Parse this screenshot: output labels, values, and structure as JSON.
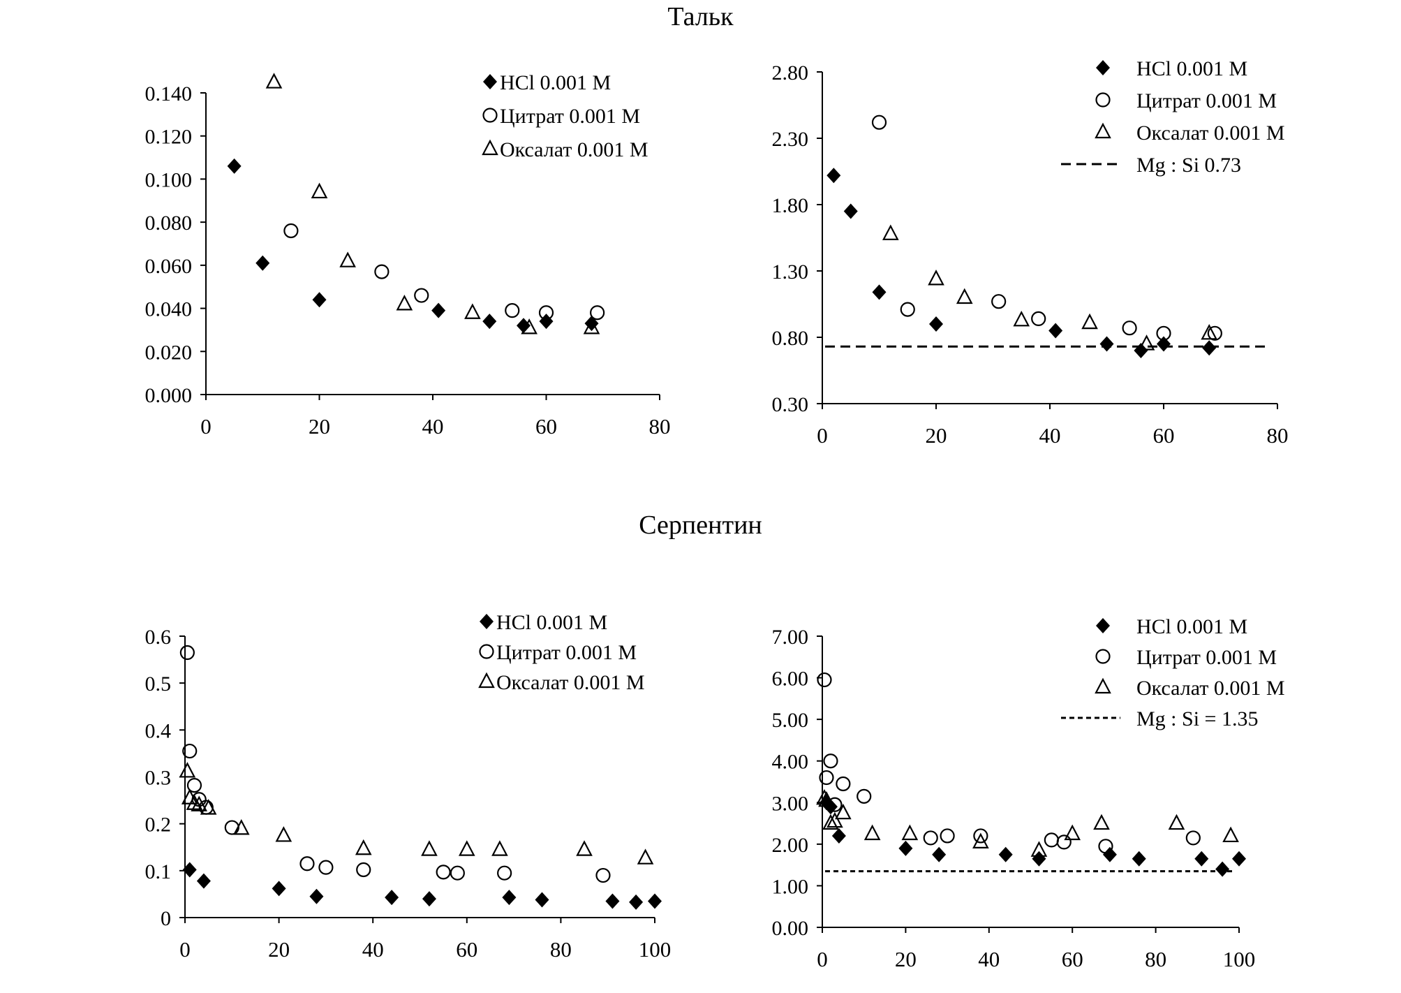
{
  "titles": {
    "talc": "Тальк",
    "serpentine": "Серпентин"
  },
  "chart_data": [
    {
      "type": "scatter",
      "title": "",
      "xlabel": "",
      "ylabel": "",
      "xlim": [
        0,
        80
      ],
      "ylim": [
        0,
        0.14
      ],
      "xticks": [
        "0",
        "20",
        "40",
        "60",
        "80"
      ],
      "yticks": [
        "0.000",
        "0.020",
        "0.040",
        "0.060",
        "0.080",
        "0.100",
        "0.120",
        "0.140"
      ],
      "legend": {
        "position": "top-right",
        "style": "inline"
      },
      "series": [
        {
          "name": "HCl 0.001 M",
          "marker": "diamond-filled",
          "points": [
            [
              5,
              0.106
            ],
            [
              10,
              0.061
            ],
            [
              20,
              0.044
            ],
            [
              41,
              0.039
            ],
            [
              50,
              0.034
            ],
            [
              56,
              0.032
            ],
            [
              60,
              0.034
            ],
            [
              68,
              0.033
            ]
          ]
        },
        {
          "name": "Цитрат 0.001 M",
          "marker": "circle-open",
          "points": [
            [
              15,
              0.076
            ],
            [
              31,
              0.057
            ],
            [
              38,
              0.046
            ],
            [
              54,
              0.039
            ],
            [
              60,
              0.038
            ],
            [
              69,
              0.038
            ]
          ]
        },
        {
          "name": "Оксалат 0.001 M",
          "marker": "triangle-open",
          "points": [
            [
              12,
              0.145
            ],
            [
              20,
              0.094
            ],
            [
              25,
              0.062
            ],
            [
              35,
              0.042
            ],
            [
              47,
              0.038
            ],
            [
              57,
              0.031
            ],
            [
              68,
              0.031
            ]
          ]
        }
      ]
    },
    {
      "type": "scatter",
      "title": "",
      "xlabel": "",
      "ylabel": "",
      "xlim": [
        0,
        80
      ],
      "ylim": [
        0.3,
        2.8
      ],
      "xticks": [
        "0",
        "20",
        "40",
        "60",
        "80"
      ],
      "yticks": [
        "0.30",
        "0.80",
        "1.30",
        "1.80",
        "2.30",
        "2.80"
      ],
      "legend": {
        "position": "top-right",
        "style": "column"
      },
      "series": [
        {
          "name": "HCl 0.001 M",
          "marker": "diamond-filled",
          "points": [
            [
              2,
              2.02
            ],
            [
              5,
              1.75
            ],
            [
              10,
              1.14
            ],
            [
              20,
              0.9
            ],
            [
              41,
              0.85
            ],
            [
              50,
              0.75
            ],
            [
              56,
              0.7
            ],
            [
              60,
              0.75
            ],
            [
              68,
              0.72
            ]
          ]
        },
        {
          "name": "Цитрат 0.001 M",
          "marker": "circle-open",
          "points": [
            [
              10,
              2.42
            ],
            [
              15,
              1.01
            ],
            [
              31,
              1.07
            ],
            [
              38,
              0.94
            ],
            [
              54,
              0.87
            ],
            [
              60,
              0.83
            ],
            [
              69,
              0.83
            ]
          ]
        },
        {
          "name": "Оксалат 0.001 M",
          "marker": "triangle-open",
          "points": [
            [
              12,
              1.58
            ],
            [
              20,
              1.24
            ],
            [
              25,
              1.1
            ],
            [
              35,
              0.93
            ],
            [
              47,
              0.91
            ],
            [
              57,
              0.75
            ],
            [
              68,
              0.83
            ]
          ]
        },
        {
          "name": "Mg : Si  0.73",
          "marker": "line-dashed",
          "value": 0.73
        }
      ]
    },
    {
      "type": "scatter",
      "title": "",
      "xlabel": "",
      "ylabel": "",
      "xlim": [
        0,
        100
      ],
      "ylim": [
        0,
        0.6
      ],
      "xticks": [
        "0",
        "20",
        "40",
        "60",
        "80",
        "100"
      ],
      "yticks": [
        "0",
        "0.1",
        "0.2",
        "0.3",
        "0.4",
        "0.5",
        "0.6"
      ],
      "legend": {
        "position": "top-right",
        "style": "inline"
      },
      "series": [
        {
          "name": "HCl 0.001 M",
          "marker": "diamond-filled",
          "points": [
            [
              1,
              0.102
            ],
            [
              4,
              0.078
            ],
            [
              20,
              0.062
            ],
            [
              28,
              0.045
            ],
            [
              44,
              0.043
            ],
            [
              52,
              0.04
            ],
            [
              69,
              0.043
            ],
            [
              76,
              0.038
            ],
            [
              91,
              0.035
            ],
            [
              96,
              0.033
            ],
            [
              100,
              0.035
            ]
          ]
        },
        {
          "name": "Цитрат 0.001 M",
          "marker": "circle-open",
          "points": [
            [
              0.5,
              0.565
            ],
            [
              1,
              0.355
            ],
            [
              2,
              0.282
            ],
            [
              3,
              0.252
            ],
            [
              4.5,
              0.235
            ],
            [
              10,
              0.192
            ],
            [
              26,
              0.115
            ],
            [
              30,
              0.107
            ],
            [
              38,
              0.102
            ],
            [
              55,
              0.097
            ],
            [
              58,
              0.095
            ],
            [
              68,
              0.095
            ],
            [
              89,
              0.09
            ]
          ]
        },
        {
          "name": "Оксалат 0.001 M",
          "marker": "triangle-open",
          "points": [
            [
              0.5,
              0.312
            ],
            [
              1,
              0.255
            ],
            [
              2,
              0.243
            ],
            [
              3,
              0.24
            ],
            [
              5,
              0.233
            ],
            [
              12,
              0.19
            ],
            [
              21,
              0.175
            ],
            [
              38,
              0.147
            ],
            [
              52,
              0.145
            ],
            [
              60,
              0.145
            ],
            [
              67,
              0.145
            ],
            [
              85,
              0.145
            ],
            [
              98,
              0.127
            ]
          ]
        }
      ]
    },
    {
      "type": "scatter",
      "title": "",
      "xlabel": "",
      "ylabel": "",
      "xlim": [
        0,
        100
      ],
      "ylim": [
        0,
        7
      ],
      "xticks": [
        "0",
        "20",
        "40",
        "60",
        "80",
        "100"
      ],
      "yticks": [
        "0.00",
        "1.00",
        "2.00",
        "3.00",
        "4.00",
        "5.00",
        "6.00",
        "7.00"
      ],
      "legend": {
        "position": "top-right",
        "style": "column"
      },
      "series": [
        {
          "name": "HCl 0.001 M",
          "marker": "diamond-filled",
          "points": [
            [
              1,
              3.0
            ],
            [
              2,
              2.9
            ],
            [
              4,
              2.2
            ],
            [
              20,
              1.9
            ],
            [
              28,
              1.75
            ],
            [
              44,
              1.75
            ],
            [
              52,
              1.65
            ],
            [
              69,
              1.75
            ],
            [
              76,
              1.65
            ],
            [
              91,
              1.65
            ],
            [
              96,
              1.4
            ],
            [
              100,
              1.65
            ]
          ]
        },
        {
          "name": "Цитрат 0.001 M",
          "marker": "circle-open",
          "points": [
            [
              0.5,
              5.95
            ],
            [
              1,
              3.6
            ],
            [
              2,
              4.0
            ],
            [
              3,
              2.95
            ],
            [
              5,
              3.45
            ],
            [
              10,
              3.15
            ],
            [
              26,
              2.15
            ],
            [
              30,
              2.2
            ],
            [
              38,
              2.2
            ],
            [
              55,
              2.1
            ],
            [
              58,
              2.05
            ],
            [
              68,
              1.95
            ],
            [
              89,
              2.15
            ]
          ]
        },
        {
          "name": "Оксалат 0.001 M",
          "marker": "triangle-open",
          "points": [
            [
              0.5,
              3.1
            ],
            [
              1,
              3.05
            ],
            [
              2,
              2.5
            ],
            [
              3,
              2.55
            ],
            [
              5,
              2.75
            ],
            [
              12,
              2.25
            ],
            [
              21,
              2.25
            ],
            [
              38,
              2.05
            ],
            [
              52,
              1.85
            ],
            [
              60,
              2.25
            ],
            [
              67,
              2.5
            ],
            [
              85,
              2.5
            ],
            [
              98,
              2.2
            ]
          ]
        },
        {
          "name": "Mg : Si = 1.35",
          "marker": "line-dotted",
          "value": 1.35
        }
      ]
    }
  ]
}
